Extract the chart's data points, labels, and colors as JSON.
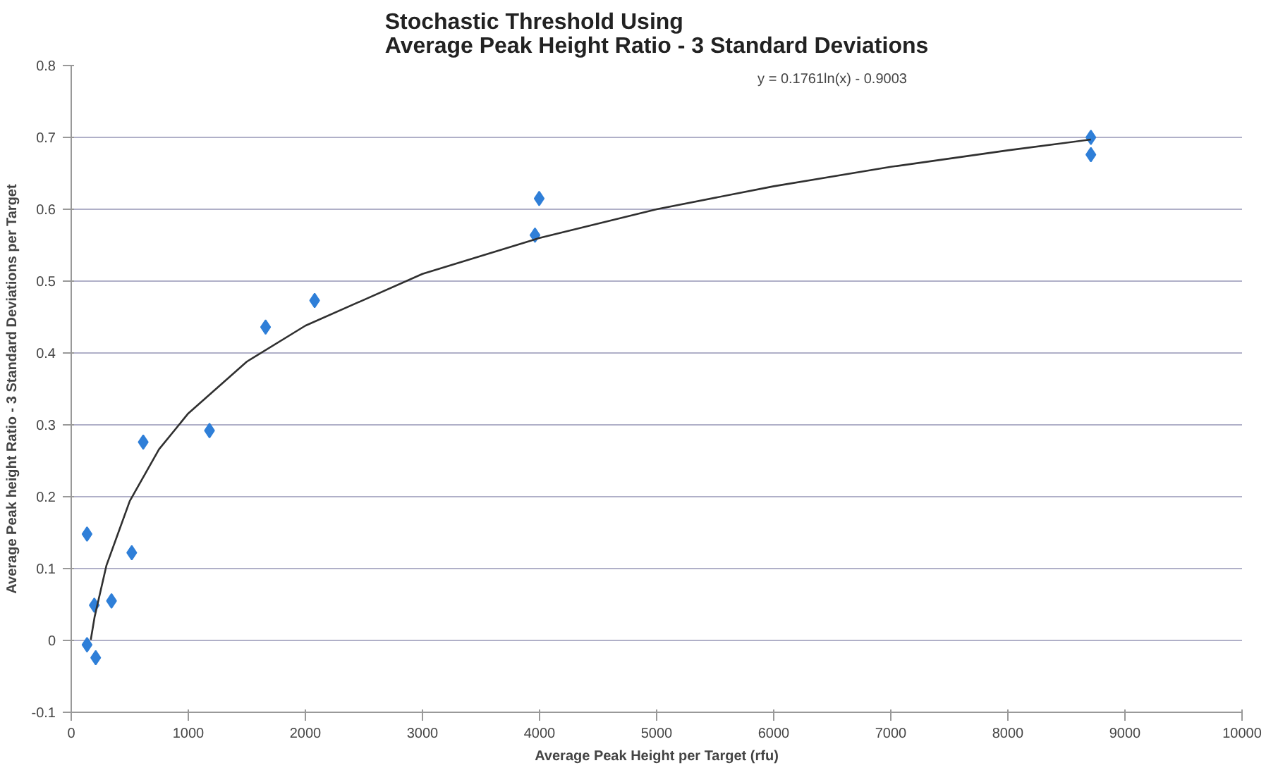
{
  "chart_data": {
    "type": "scatter",
    "title": "Stochastic Threshold Using\nAverage Peak Height Ratio - 3 Standard Deviations",
    "xlabel": "Average Peak Height per Target (rfu)",
    "ylabel": "Average Peak height Ratio - 3 Standard Deviations per Target",
    "annotations": [
      "y = 0.1761ln(x) - 0.9003"
    ],
    "series": [
      {
        "color": "#2f7fd8",
        "marker": "diamond",
        "x": [
          135,
          135,
          197,
          209,
          344,
          517,
          615,
          1181,
          1660,
          2079,
          3961,
          3997,
          8709,
          8709
        ],
        "values": [
          0.148,
          -0.006,
          0.049,
          -0.024,
          0.055,
          0.122,
          0.276,
          0.292,
          0.436,
          0.473,
          0.564,
          0.615,
          0.7,
          0.676
        ]
      },
      {
        "type": "line",
        "color": "#303030",
        "x": [
          167,
          200,
          300,
          500,
          750,
          1000,
          1500,
          2000,
          3000,
          4000,
          5000,
          6000,
          7000,
          8000,
          8709
        ],
        "values": [
          0.001,
          0.033,
          0.104,
          0.194,
          0.266,
          0.316,
          0.388,
          0.438,
          0.51,
          0.56,
          0.6,
          0.632,
          0.659,
          0.682,
          0.697
        ]
      }
    ],
    "xlim": [
      0,
      10000
    ],
    "xticks": [
      0,
      1000,
      2000,
      3000,
      4000,
      5000,
      6000,
      7000,
      8000,
      9000,
      10000
    ],
    "ylim": [
      -0.1,
      0.8
    ],
    "yticks": [
      -0.1,
      0,
      0.1,
      0.2,
      0.3,
      0.4,
      0.5,
      0.6,
      0.7,
      0.8
    ],
    "grid": "y"
  }
}
